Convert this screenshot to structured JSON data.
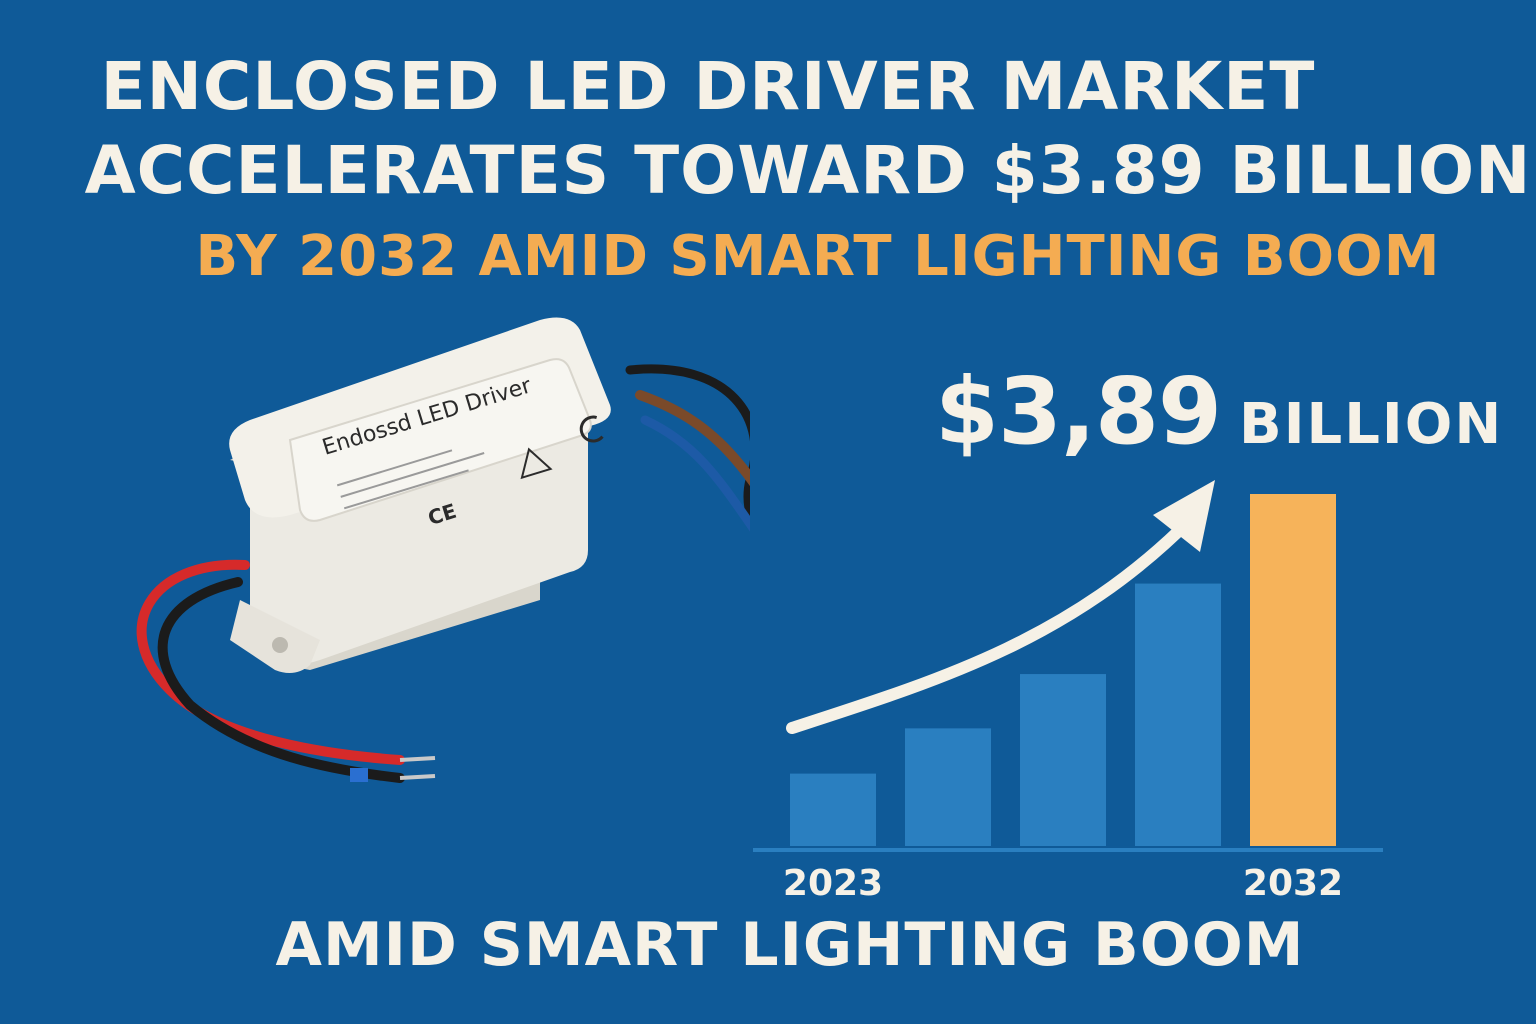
{
  "headline": {
    "line1": "ENCLOSED LED DRIVER MARKET",
    "line2": "ACCELERATES TOWARD $3.89 BILLION",
    "line3": "BY 2032 AMID SMART LIGHTING BOOM"
  },
  "value_callout": {
    "amount": "$3,89",
    "unit": "BILLION"
  },
  "product": {
    "label_title": "Endossd LED Driver"
  },
  "footer": {
    "tagline": "AMID SMART LIGHTING BOOM"
  },
  "colors": {
    "background": "#0f5a98",
    "bar": "#2a7fc0",
    "highlight_bar": "#f6b35a",
    "text_light": "#f6f1e6",
    "accent": "#f4ac52"
  },
  "chart_data": {
    "type": "bar",
    "categories": [
      "2023",
      "",
      "",
      "",
      "2032"
    ],
    "values": [
      0.8,
      1.3,
      1.9,
      2.9,
      3.89
    ],
    "tick_labels": [
      "2023",
      "2032"
    ],
    "highlight_index": 4,
    "trend_arrow": true
  }
}
